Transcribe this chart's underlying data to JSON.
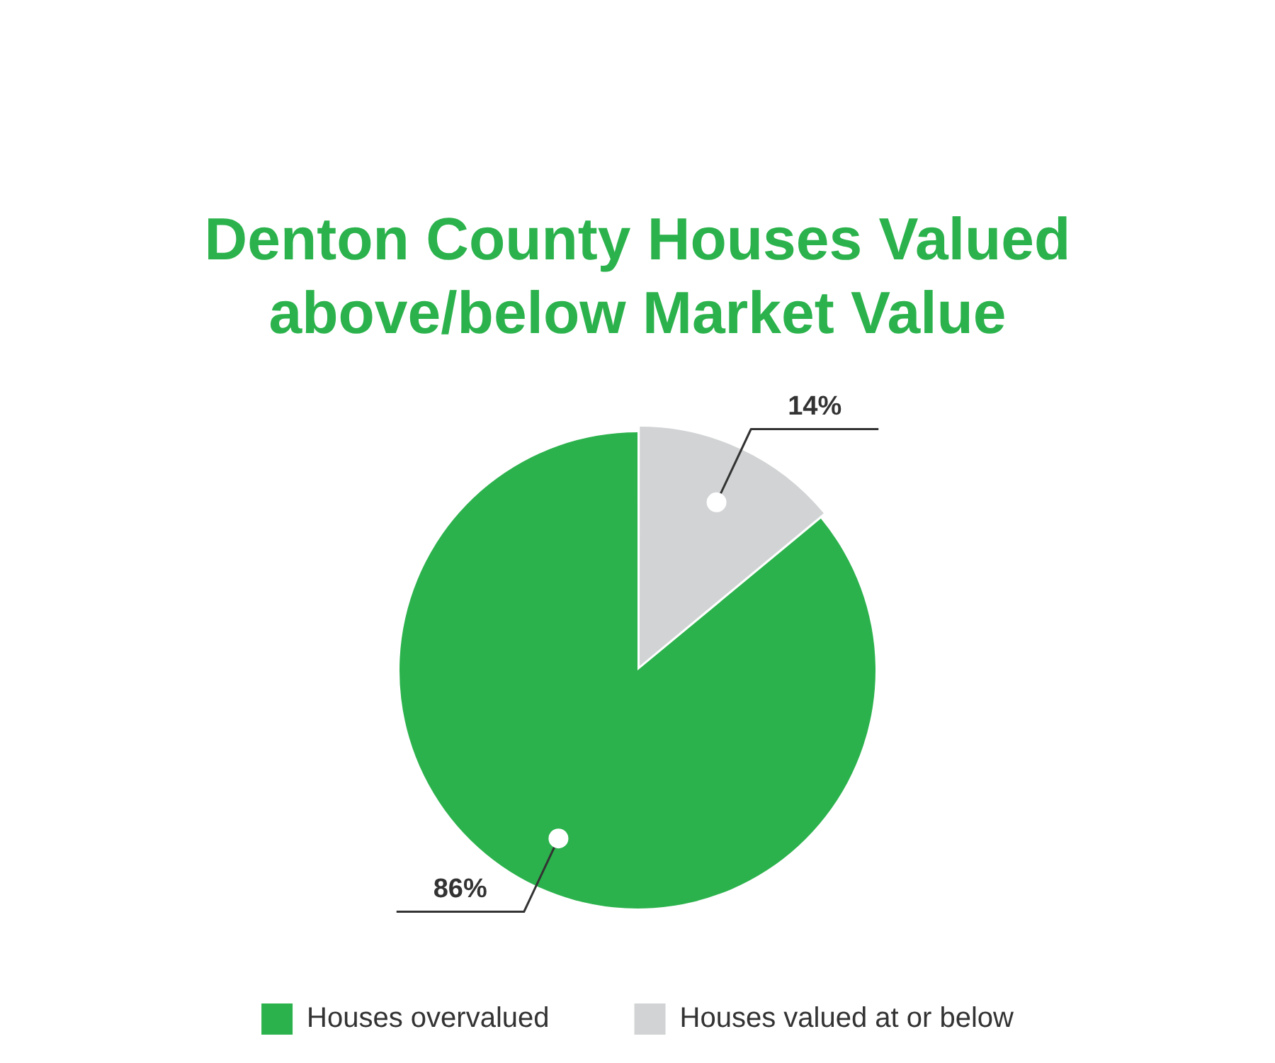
{
  "chart_data": {
    "type": "pie",
    "title": "Denton County Houses Valued above/below Market Value",
    "categories": [
      "Houses overvalued",
      "Houses valued at or below"
    ],
    "values": [
      86,
      14
    ],
    "colors": [
      "#2bb24c",
      "#d1d3d4"
    ],
    "value_labels": [
      "86%",
      "14%"
    ],
    "legend": "bottom"
  }
}
